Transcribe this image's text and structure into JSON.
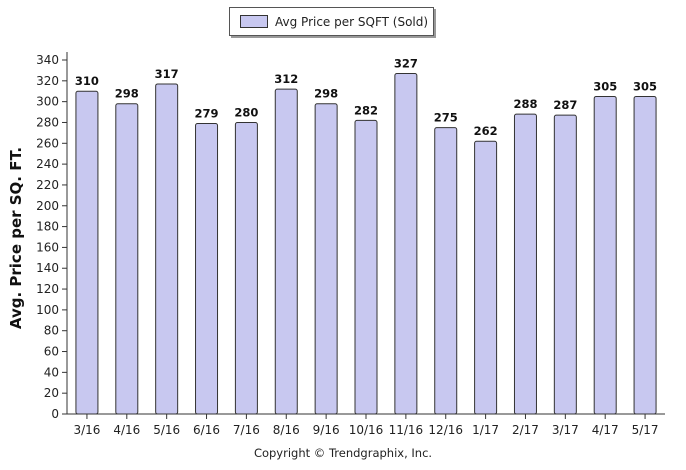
{
  "legend": {
    "label": "Avg Price per SQFT (Sold)"
  },
  "footer": {
    "copyright": "Copyright © Trendgraphix, Inc."
  },
  "colors": {
    "bar_fill": "#c8c8f0",
    "bar_stroke": "#333333",
    "axis": "#333333"
  },
  "chart_data": {
    "type": "bar",
    "title": "",
    "xlabel": "",
    "ylabel": "Avg. Price per SQ. FT.",
    "ylim": [
      0,
      340
    ],
    "ytick_step": 20,
    "grid": false,
    "legend_position": "top-center",
    "categories": [
      "3/16",
      "4/16",
      "5/16",
      "6/16",
      "7/16",
      "8/16",
      "9/16",
      "10/16",
      "11/16",
      "12/16",
      "1/17",
      "2/17",
      "3/17",
      "4/17",
      "5/17"
    ],
    "series": [
      {
        "name": "Avg Price per SQFT (Sold)",
        "values": [
          310,
          298,
          317,
          279,
          280,
          312,
          298,
          282,
          327,
          275,
          262,
          288,
          287,
          305,
          305
        ]
      }
    ]
  }
}
